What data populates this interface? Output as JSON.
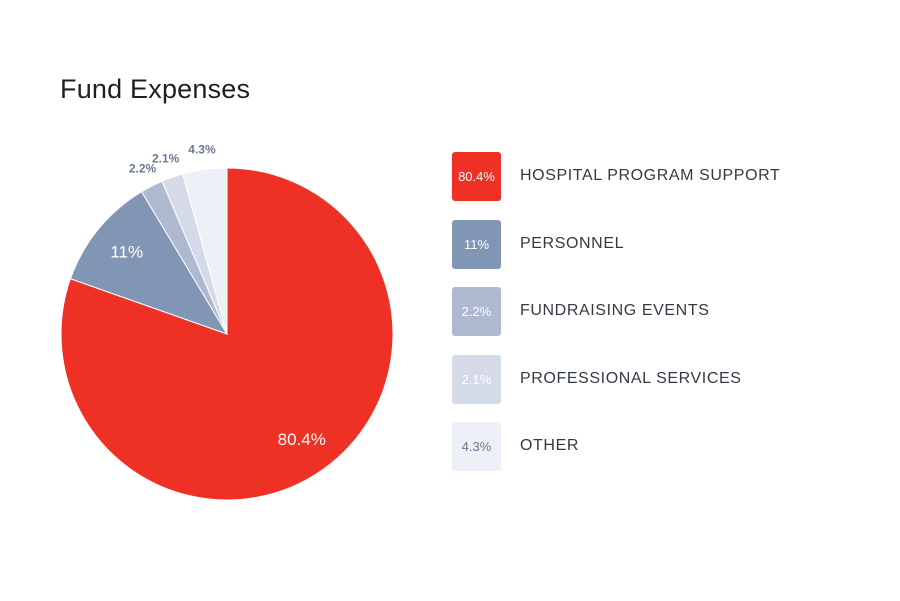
{
  "title": "Fund Expenses",
  "chart_data": {
    "type": "pie",
    "title": "Fund Expenses",
    "slices": [
      {
        "name": "HOSPITAL PROGRAM SUPPORT",
        "value": 80.4,
        "label": "80.4%",
        "color": "#ee3124",
        "text_color": "#ffffff"
      },
      {
        "name": "PERSONNEL",
        "value": 11,
        "label": "11%",
        "color": "#8196b5",
        "text_color": "#ffffff"
      },
      {
        "name": "FUNDRAISING EVENTS",
        "value": 2.2,
        "label": "2.2%",
        "color": "#aeb9d0",
        "text_color": "#ffffff"
      },
      {
        "name": "PROFESSIONAL SERVICES",
        "value": 2.1,
        "label": "2.1%",
        "color": "#d4dae7",
        "text_color": "#ffffff"
      },
      {
        "name": "OTHER",
        "value": 4.3,
        "label": "4.3%",
        "color": "#edf0f6",
        "text_color": "#6b7790"
      }
    ],
    "outside_label_color": "#6b7790",
    "legend_position": "right"
  }
}
